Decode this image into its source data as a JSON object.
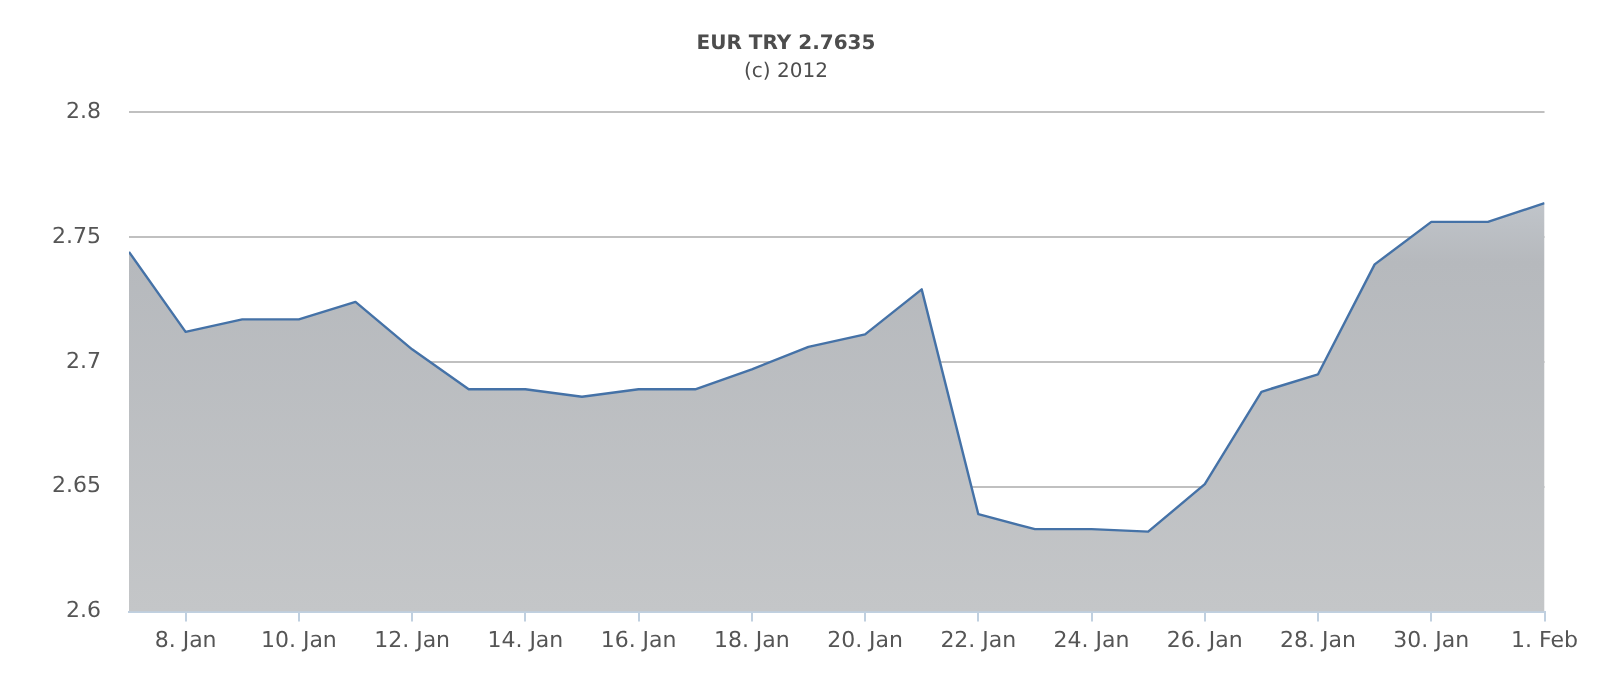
{
  "chart_data": {
    "type": "area",
    "title": "EUR TRY 2.7635",
    "subtitle": "(c) 2012",
    "x": [
      "2012-01-07",
      "2012-01-08",
      "2012-01-09",
      "2012-01-10",
      "2012-01-11",
      "2012-01-12",
      "2012-01-13",
      "2012-01-14",
      "2012-01-15",
      "2012-01-16",
      "2012-01-17",
      "2012-01-18",
      "2012-01-19",
      "2012-01-20",
      "2012-01-21",
      "2012-01-22",
      "2012-01-23",
      "2012-01-24",
      "2012-01-25",
      "2012-01-26",
      "2012-01-27",
      "2012-01-28",
      "2012-01-29",
      "2012-01-30",
      "2012-01-31",
      "2012-02-01"
    ],
    "series": [
      {
        "color": "#4572a7",
        "values": [
          2.744,
          2.712,
          2.717,
          2.717,
          2.724,
          2.705,
          2.689,
          2.689,
          2.686,
          2.689,
          2.689,
          2.697,
          2.706,
          2.711,
          2.729,
          2.639,
          2.633,
          2.633,
          2.632,
          2.651,
          2.688,
          2.695,
          2.739,
          2.756,
          2.756,
          2.7635
        ]
      }
    ],
    "xlim": [
      "2012-01-07",
      "2012-02-01"
    ],
    "xticks": [
      {
        "value": "2012-01-08",
        "label": "8. Jan"
      },
      {
        "value": "2012-01-10",
        "label": "10. Jan"
      },
      {
        "value": "2012-01-12",
        "label": "12. Jan"
      },
      {
        "value": "2012-01-14",
        "label": "14. Jan"
      },
      {
        "value": "2012-01-16",
        "label": "16. Jan"
      },
      {
        "value": "2012-01-18",
        "label": "18. Jan"
      },
      {
        "value": "2012-01-20",
        "label": "20. Jan"
      },
      {
        "value": "2012-01-22",
        "label": "22. Jan"
      },
      {
        "value": "2012-01-24",
        "label": "24. Jan"
      },
      {
        "value": "2012-01-26",
        "label": "26. Jan"
      },
      {
        "value": "2012-01-28",
        "label": "28. Jan"
      },
      {
        "value": "2012-01-30",
        "label": "30. Jan"
      },
      {
        "value": "2012-02-01",
        "label": "1. Feb"
      }
    ],
    "ylim": [
      2.6,
      2.8
    ],
    "yticks": [
      2.6,
      2.65,
      2.7,
      2.75,
      2.8
    ],
    "grid": "y",
    "legend": false,
    "marker": "none"
  }
}
